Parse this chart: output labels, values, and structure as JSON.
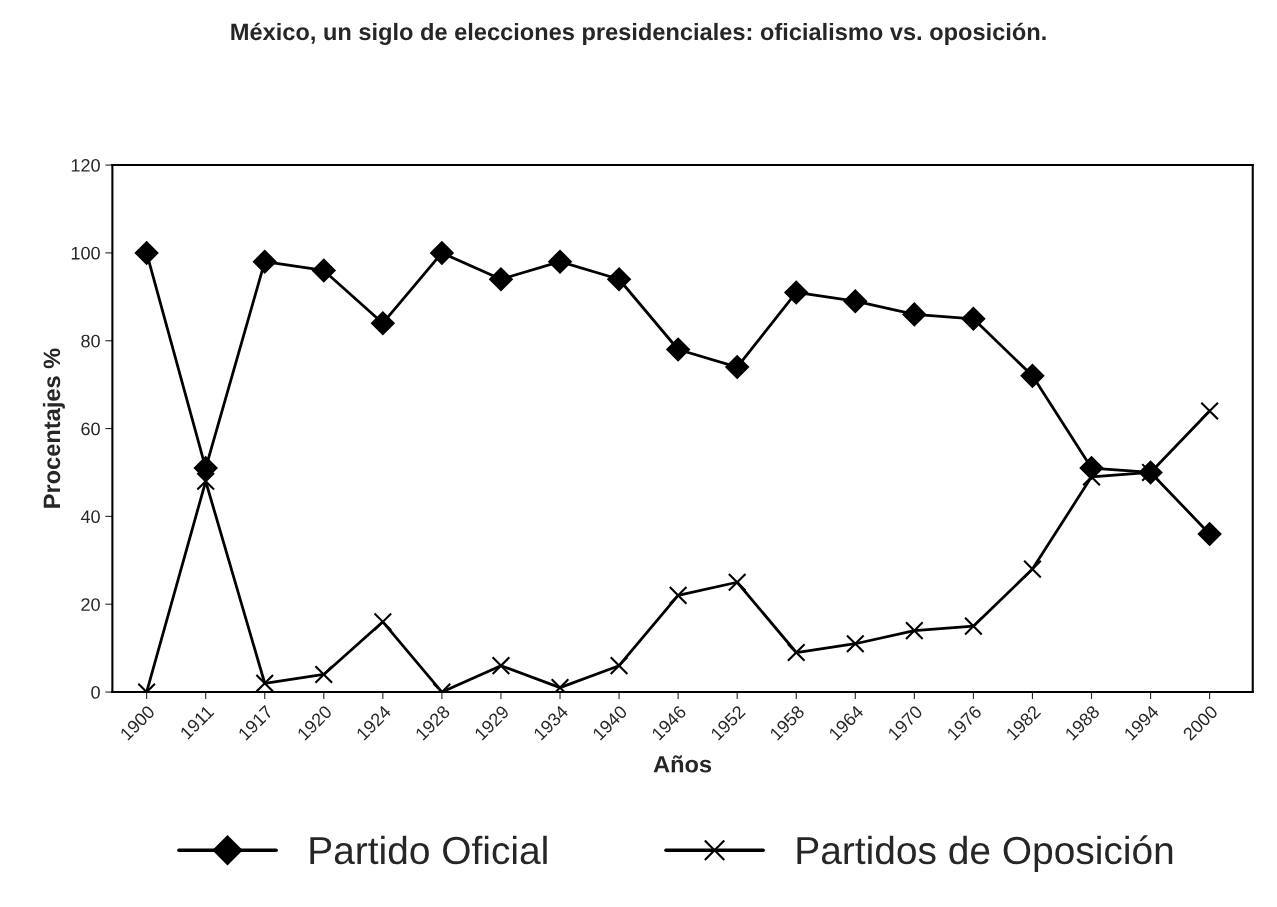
{
  "chart_data": {
    "type": "line",
    "title": "México, un siglo de elecciones presidenciales: oficialismo vs. oposición.",
    "xlabel": "Años",
    "ylabel": "Procentajes %",
    "categories": [
      "1900",
      "1911",
      "1917",
      "1920",
      "1924",
      "1928",
      "1929",
      "1934",
      "1940",
      "1946",
      "1952",
      "1958",
      "1964",
      "1970",
      "1976",
      "1982",
      "1988",
      "1994",
      "2000"
    ],
    "series": [
      {
        "name": "Partido Oficial",
        "color": "#000000",
        "marker": "diamond",
        "values": [
          100,
          51,
          98,
          96,
          84,
          100,
          94,
          98,
          94,
          78,
          74,
          91,
          89,
          86,
          85,
          72,
          51,
          50,
          36
        ]
      },
      {
        "name": "Partidos de Oposición",
        "color": "#000000",
        "marker": "cross",
        "values": [
          0,
          48,
          2,
          4,
          16,
          0,
          6,
          1,
          6,
          22,
          25,
          9,
          11,
          14,
          15,
          28,
          49,
          50,
          64
        ]
      }
    ],
    "ylim": [
      0,
      120
    ],
    "yticks": [
      0,
      20,
      40,
      60,
      80,
      100,
      120
    ],
    "grid": false,
    "legend": "bottom",
    "line_style": "solid"
  }
}
